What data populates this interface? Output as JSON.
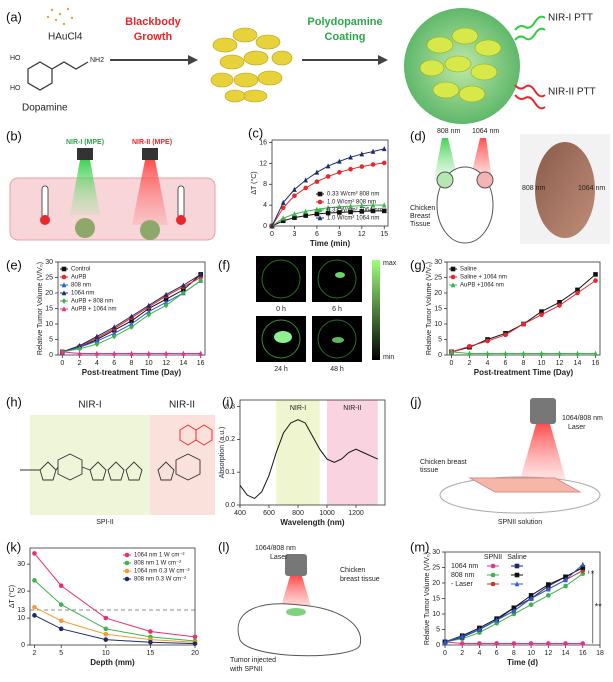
{
  "panels": {
    "a": {
      "label": "(a)",
      "precursor": "HAuCl4",
      "monomer": "Dopamine",
      "groups": [
        "HO",
        "HO",
        "NH2"
      ],
      "step1": [
        "Blackbody",
        "Growth"
      ],
      "step2": [
        "Polydopamine",
        "Coating"
      ],
      "out1": "NIR-I PTT",
      "out2": "NIR-II PTT"
    },
    "b": {
      "label": "(b)",
      "laser1": "NIR-I (MPE)",
      "laser2": "NIR-II (MPE)"
    },
    "d": {
      "label": "(d)",
      "laser1": "808 nm",
      "laser2": "1064 nm",
      "tissue": [
        "Chicken",
        "Breast",
        "Tissue"
      ],
      "photo1": "808 nm",
      "photo2": "1064 nm"
    },
    "f": {
      "label": "(f)",
      "max": "max",
      "min": "min",
      "times": [
        "0 h",
        "6 h",
        "24 h",
        "48 h"
      ]
    },
    "h": {
      "label": "(h)",
      "block1": "NIR-I",
      "block2": "NIR-II",
      "name": "SPI-II"
    },
    "j": {
      "label": "(j)",
      "laser": [
        "1064/808 nm",
        "Laser"
      ],
      "tissue": [
        "Chicken breast",
        "tissue"
      ],
      "solution": "SPNII solution"
    },
    "l": {
      "label": "(l)",
      "laser": [
        "1064/808 nm",
        "Laser"
      ],
      "tissue": [
        "Chicken",
        "breast tissue"
      ],
      "tumor": [
        "Tumor injected",
        "with SPNII"
      ]
    }
  },
  "chart_data": [
    {
      "type": "line",
      "label": "(c)",
      "xlabel": "Time (min)",
      "ylabel": "ΔT (°C)",
      "xlim": [
        0,
        15.5
      ],
      "xticks": [
        0,
        3,
        6,
        9,
        12,
        15
      ],
      "ylim": [
        0,
        16.5
      ],
      "yticks": [
        0,
        4,
        8,
        12,
        16
      ],
      "legend": "lower right",
      "x": [
        0,
        1.5,
        3,
        4.5,
        6,
        7.5,
        9,
        10.5,
        12,
        13.5,
        15
      ],
      "series": [
        {
          "name": "0.33 W/cm² 808 nm",
          "color": "#111111",
          "marker": "square",
          "values": [
            0,
            1.0,
            1.6,
            2.0,
            2.3,
            2.5,
            2.6,
            2.7,
            2.8,
            2.9,
            2.9
          ]
        },
        {
          "name": "1.0 W/cm² 808 nm",
          "color": "#e8262b",
          "marker": "circle",
          "values": [
            0,
            3.5,
            5.8,
            7.3,
            8.5,
            9.5,
            10.3,
            10.9,
            11.4,
            11.8,
            12.1
          ]
        },
        {
          "name": "0.33 W/cm² 1064 nm",
          "color": "#3cb44b",
          "marker": "triangle",
          "values": [
            0,
            1.5,
            2.3,
            2.8,
            3.2,
            3.5,
            3.7,
            3.8,
            3.9,
            4.0,
            4.0
          ]
        },
        {
          "name": "1.0 W/cm² 1064 nm",
          "color": "#1f2a6b",
          "marker": "triangle",
          "values": [
            0,
            4.5,
            7.0,
            8.8,
            10.3,
            11.5,
            12.4,
            13.2,
            13.8,
            14.3,
            14.8
          ]
        }
      ]
    },
    {
      "type": "line",
      "label": "(e)",
      "xlabel": "Post-treatment Time (Day)",
      "ylabel": "Relative Tumor Volume (V/V₀)",
      "xlim": [
        -0.5,
        16.5
      ],
      "xticks": [
        0,
        2,
        4,
        6,
        8,
        10,
        12,
        14,
        16
      ],
      "ylim": [
        0,
        30
      ],
      "yticks": [
        0,
        5,
        10,
        15,
        20,
        25,
        30
      ],
      "legend": "upper left",
      "x": [
        0,
        2,
        4,
        6,
        8,
        10,
        12,
        14,
        16
      ],
      "series": [
        {
          "name": "Control",
          "color": "#111111",
          "marker": "square",
          "values": [
            1,
            2.5,
            5,
            8,
            11,
            15,
            18,
            21,
            26
          ]
        },
        {
          "name": "AuPB",
          "color": "#e8262b",
          "marker": "circle",
          "values": [
            1,
            2.8,
            5.5,
            8.5,
            12,
            15.5,
            19,
            22,
            25
          ]
        },
        {
          "name": "808 nm",
          "color": "#2a5cdb",
          "marker": "triangle",
          "values": [
            1,
            2.5,
            4.5,
            7,
            10,
            14,
            17,
            20,
            24
          ]
        },
        {
          "name": "1064 nm",
          "color": "#1f2a6b",
          "marker": "triangle",
          "values": [
            1,
            3,
            6,
            9,
            12.5,
            16,
            19.5,
            22.5,
            26
          ]
        },
        {
          "name": "AuPB + 808 nm",
          "color": "#3cb44b",
          "marker": "diamond",
          "values": [
            1,
            2,
            3.5,
            6,
            9,
            13,
            16,
            20,
            24
          ]
        },
        {
          "name": "AuPB + 1064 nm",
          "color": "#e6308a",
          "marker": "triangle",
          "values": [
            1,
            0.5,
            0.5,
            0.5,
            0.5,
            0.5,
            0.5,
            0.5,
            0.5
          ]
        }
      ]
    },
    {
      "type": "line",
      "label": "(g)",
      "xlabel": "Post-treatment Time (Day)",
      "ylabel": "Relative Tumor Volume (V/V₀)",
      "xlim": [
        -0.5,
        16.5
      ],
      "xticks": [
        0,
        2,
        4,
        6,
        8,
        10,
        12,
        14,
        16
      ],
      "ylim": [
        0,
        30
      ],
      "yticks": [
        0,
        5,
        10,
        15,
        20,
        25,
        30
      ],
      "legend": "upper left",
      "x": [
        0,
        2,
        4,
        6,
        8,
        10,
        12,
        14,
        16
      ],
      "series": [
        {
          "name": "Saline",
          "color": "#111111",
          "marker": "square",
          "values": [
            1,
            2.5,
            5,
            7,
            10,
            14,
            17,
            21,
            26
          ]
        },
        {
          "name": "Saline + 1064 nm",
          "color": "#e8262b",
          "marker": "circle",
          "values": [
            1,
            2.8,
            4.5,
            6.5,
            10,
            13,
            16,
            20,
            24
          ]
        },
        {
          "name": "AuPB +1064 nm",
          "color": "#3cb44b",
          "marker": "triangle",
          "values": [
            1,
            0.5,
            0.5,
            0.5,
            0.5,
            0.5,
            0.5,
            0.5,
            0.5
          ]
        }
      ]
    },
    {
      "type": "line",
      "label": "(i)",
      "xlabel": "Wavelength (nm)",
      "ylabel": "Absorption (a.u.)",
      "xlim": [
        400,
        1400
      ],
      "xticks": [
        400,
        600,
        800,
        1000,
        1200
      ],
      "ylim": [
        0,
        0.32
      ],
      "yticks": [
        {
          "value": 0,
          "label": "0.0"
        },
        0.1,
        0.2,
        0.3
      ],
      "regions": [
        {
          "name": "NIR-I",
          "from": 650,
          "to": 950,
          "color": "#eef5cf"
        },
        {
          "name": "NIR-II",
          "from": 1000,
          "to": 1350,
          "color": "#f9d3e0"
        }
      ],
      "x": [
        400,
        450,
        500,
        550,
        600,
        650,
        700,
        750,
        800,
        850,
        900,
        950,
        1000,
        1050,
        1100,
        1150,
        1200,
        1250,
        1300,
        1350
      ],
      "series": [
        {
          "color": "#111111",
          "values": [
            0.06,
            0.03,
            0.02,
            0.04,
            0.09,
            0.16,
            0.22,
            0.25,
            0.26,
            0.25,
            0.21,
            0.17,
            0.14,
            0.13,
            0.14,
            0.16,
            0.17,
            0.16,
            0.15,
            0.14
          ]
        }
      ]
    },
    {
      "type": "line",
      "label": "(k)",
      "xlabel": "Depth (mm)",
      "ylabel": "ΔT (°C)",
      "xlim": [
        1.5,
        20
      ],
      "xticks": [
        2,
        5,
        10,
        15,
        20
      ],
      "ylim": [
        0,
        36
      ],
      "yticks": [
        0,
        10,
        20,
        30
      ],
      "legend": "upper right",
      "hline": 13,
      "x": [
        2,
        5,
        10,
        15,
        20
      ],
      "series": [
        {
          "name": "1064 nm 1 W cm⁻²",
          "color": "#e6306a",
          "marker": "circle",
          "values": [
            34,
            22,
            10,
            5,
            3
          ]
        },
        {
          "name": "808 nm 1 W cm⁻²",
          "color": "#3cb44b",
          "marker": "circle",
          "values": [
            24,
            15,
            6,
            3,
            1.5
          ]
        },
        {
          "name": "1064 nm 0.3 W cm⁻²",
          "color": "#f39c32",
          "marker": "circle",
          "values": [
            14,
            9,
            4,
            2,
            1
          ]
        },
        {
          "name": "808 nm 0.3 W cm⁻²",
          "color": "#1f2a6b",
          "marker": "circle",
          "values": [
            11,
            6,
            2,
            1,
            0.5
          ]
        }
      ]
    },
    {
      "type": "line",
      "label": "(m)",
      "xlabel": "Time (d)",
      "ylabel": "Relative Tumor Volume (V/V₀)",
      "xlim": [
        0,
        18
      ],
      "xticks": [
        0,
        2,
        4,
        6,
        8,
        10,
        12,
        14,
        16,
        18
      ],
      "ylim": [
        0,
        30
      ],
      "yticks": [
        0,
        5,
        10,
        15,
        20,
        25,
        30
      ],
      "legend_columns": [
        "SPNII",
        "Saline"
      ],
      "annotations": [
        "*",
        "**"
      ],
      "x": [
        0,
        2,
        4,
        6,
        8,
        10,
        12,
        14,
        16
      ],
      "series": [
        {
          "name": "1064 nm",
          "color": "#e6308a",
          "marker": "circle",
          "values": [
            1,
            0.5,
            0.5,
            0.5,
            0.5,
            0.5,
            0.5,
            0.5,
            0.5
          ]
        },
        {
          "name": "808 nm",
          "color": "#3cb44b",
          "marker": "circle",
          "values": [
            1,
            2,
            4,
            7,
            10,
            13,
            16,
            19,
            23
          ]
        },
        {
          "name": "- Laser",
          "color": "#c0392b",
          "marker": "circle",
          "values": [
            1,
            2.5,
            5,
            8,
            11,
            15,
            18,
            21,
            24
          ]
        },
        {
          "color": "#1f2a6b",
          "marker": "square",
          "values": [
            1,
            2.5,
            5,
            8,
            12,
            15,
            19,
            22,
            25
          ]
        },
        {
          "color": "#111111",
          "marker": "square",
          "values": [
            1,
            3,
            5.5,
            8.5,
            12,
            16,
            19.5,
            22,
            25
          ]
        },
        {
          "color": "#2a5cdb",
          "marker": "triangle",
          "values": [
            1,
            2.8,
            5,
            8,
            11,
            15,
            18,
            21,
            26
          ]
        }
      ]
    }
  ]
}
